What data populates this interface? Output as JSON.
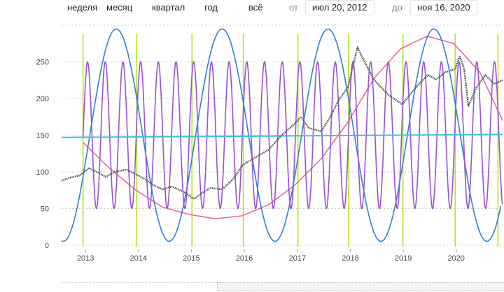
{
  "toolbar": {
    "ranges": [
      "неделя",
      "месяц",
      "квартал",
      "год",
      "всё"
    ],
    "from_label": "от",
    "from_value": "июл 20, 2012",
    "to_label": "до",
    "to_value": "ноя 16, 2020"
  },
  "chart_data": {
    "type": "line",
    "x_range": [
      "2012-07-20",
      "2020-11-16"
    ],
    "ylim": [
      0,
      300
    ],
    "y_ticks": [
      0,
      50,
      100,
      150,
      200,
      250
    ],
    "x_ticks": [
      "2013",
      "2014",
      "2015",
      "2016",
      "2017",
      "2018",
      "2019",
      "2020"
    ],
    "grid": {
      "horizontal": true,
      "style": "dotted"
    },
    "vertical_markers": {
      "color": "#b5e61d",
      "dates": [
        "2012-12-15",
        "2013-12-20",
        "2015-01-05",
        "2015-12-25",
        "2017-01-05",
        "2017-12-20",
        "2018-12-30",
        "2019-12-25",
        "2020-10-15"
      ]
    },
    "series": [
      {
        "kind": "price",
        "color": "#555555",
        "points": [
          [
            "2012-07-20",
            88
          ],
          [
            "2012-09-15",
            92
          ],
          [
            "2012-11-20",
            95
          ],
          [
            "2013-01-25",
            105
          ],
          [
            "2013-03-20",
            100
          ],
          [
            "2013-05-20",
            93
          ],
          [
            "2013-07-20",
            100
          ],
          [
            "2013-10-10",
            103
          ],
          [
            "2013-12-20",
            96
          ],
          [
            "2014-02-15",
            90
          ],
          [
            "2014-04-15",
            82
          ],
          [
            "2014-06-15",
            76
          ],
          [
            "2014-08-20",
            80
          ],
          [
            "2014-11-15",
            72
          ],
          [
            "2015-01-20",
            63
          ],
          [
            "2015-03-20",
            72
          ],
          [
            "2015-05-15",
            78
          ],
          [
            "2015-08-01",
            76
          ],
          [
            "2015-10-15",
            90
          ],
          [
            "2015-12-25",
            110
          ],
          [
            "2016-03-20",
            120
          ],
          [
            "2016-06-15",
            130
          ],
          [
            "2016-09-15",
            150
          ],
          [
            "2016-12-10",
            165
          ],
          [
            "2017-01-25",
            175
          ],
          [
            "2017-03-20",
            160
          ],
          [
            "2017-06-15",
            155
          ],
          [
            "2017-08-15",
            175
          ],
          [
            "2017-10-20",
            200
          ],
          [
            "2017-12-15",
            215
          ],
          [
            "2018-01-20",
            245
          ],
          [
            "2018-02-20",
            270
          ],
          [
            "2018-03-20",
            258
          ],
          [
            "2018-06-15",
            225
          ],
          [
            "2018-09-20",
            205
          ],
          [
            "2018-12-25",
            192
          ],
          [
            "2019-02-15",
            205
          ],
          [
            "2019-04-20",
            220
          ],
          [
            "2019-06-20",
            232
          ],
          [
            "2019-08-15",
            226
          ],
          [
            "2019-10-20",
            236
          ],
          [
            "2019-12-25",
            240
          ],
          [
            "2020-01-25",
            258
          ],
          [
            "2020-02-25",
            240
          ],
          [
            "2020-03-25",
            190
          ],
          [
            "2020-05-20",
            215
          ],
          [
            "2020-07-20",
            232
          ],
          [
            "2020-09-20",
            220
          ],
          [
            "2020-11-16",
            225
          ]
        ]
      },
      {
        "kind": "cycle-long",
        "color": "#e86a9e",
        "points": [
          [
            "2012-12-15",
            140
          ],
          [
            "2013-06-15",
            105
          ],
          [
            "2013-12-15",
            75
          ],
          [
            "2014-06-15",
            52
          ],
          [
            "2014-12-15",
            42
          ],
          [
            "2015-06-15",
            36
          ],
          [
            "2015-12-15",
            40
          ],
          [
            "2016-06-15",
            55
          ],
          [
            "2016-12-15",
            82
          ],
          [
            "2017-06-15",
            118
          ],
          [
            "2017-12-15",
            168
          ],
          [
            "2018-06-15",
            228
          ],
          [
            "2018-12-15",
            268
          ],
          [
            "2019-06-15",
            285
          ],
          [
            "2019-12-15",
            275
          ],
          [
            "2020-06-15",
            235
          ],
          [
            "2020-11-16",
            170
          ]
        ]
      },
      {
        "kind": "cycle-wave",
        "color": "#2f7fd6",
        "center": 150,
        "amplitude": 145,
        "period_days": 730,
        "peak_date": "2013-08-01",
        "start": "2012-07-20",
        "end": "2020-11-16"
      },
      {
        "kind": "cycle-short",
        "color": "#9b4fd8",
        "center": 150,
        "amplitude": 100,
        "period_days": 122,
        "peak_date": "2013-01-15",
        "start": "2012-12-15",
        "end": "2020-11-16"
      },
      {
        "kind": "trend",
        "color": "#33c6df",
        "points": [
          [
            "2012-07-20",
            147
          ],
          [
            "2020-11-16",
            151
          ]
        ]
      }
    ]
  }
}
